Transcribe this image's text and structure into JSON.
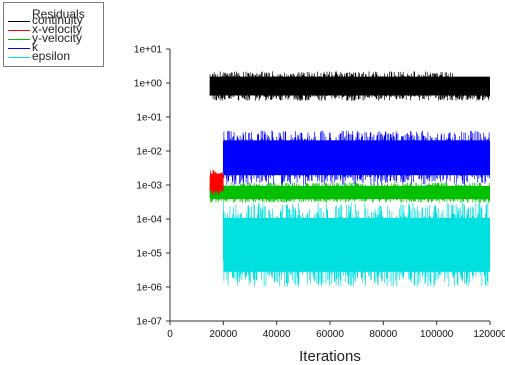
{
  "chart_data": {
    "type": "line",
    "title": "",
    "xlabel": "Iterations",
    "ylabel": "",
    "yscale": "log",
    "xlim": [
      0,
      120000
    ],
    "ylim": [
      1e-07,
      10
    ],
    "x_ticks": [
      0,
      20000,
      40000,
      60000,
      80000,
      100000,
      120000
    ],
    "x_tick_labels": [
      "0",
      "20000",
      "40000",
      "60000",
      "80000",
      "100000",
      "120000"
    ],
    "y_ticks": [
      1e-07,
      1e-06,
      1e-05,
      0.0001,
      0.001,
      0.01,
      0.1,
      1,
      10
    ],
    "y_tick_labels": [
      "1e-07",
      "1e-06",
      "1e-05",
      "1e-04",
      "1e-03",
      "1e-02",
      "1e-01",
      "1e+00",
      "1e+01"
    ],
    "legend": {
      "title": "Residuals",
      "placement": "top-left",
      "entries": [
        {
          "label": "continuity",
          "color": "#000000"
        },
        {
          "label": "x-velocity",
          "color": "#ff0000"
        },
        {
          "label": "y-velocity",
          "color": "#00c000"
        },
        {
          "label": "k",
          "color": "#0000ff"
        },
        {
          "label": "epsilon",
          "color": "#00e0e0"
        }
      ]
    },
    "series": [
      {
        "name": "continuity",
        "color": "#000000",
        "x_range": [
          15000,
          120000
        ],
        "low": 0.3,
        "high": 2.2,
        "tail": {
          "from": 107000,
          "low": 0.3,
          "high": 1.0
        }
      },
      {
        "name": "x-velocity",
        "color": "#ff0000",
        "x_range": [
          15000,
          20000
        ],
        "low": 0.0005,
        "high": 0.003
      },
      {
        "name": "y-velocity",
        "color": "#00c000",
        "x_range": [
          15000,
          120000
        ],
        "low": 0.0003,
        "high": 0.0012
      },
      {
        "name": "k",
        "color": "#0000ff",
        "x_range": [
          20000,
          120000
        ],
        "low": 0.001,
        "high": 0.04
      },
      {
        "name": "epsilon",
        "color": "#00e0e0",
        "x_range": [
          20000,
          120000
        ],
        "low": 1e-06,
        "high": 0.0003
      }
    ]
  }
}
